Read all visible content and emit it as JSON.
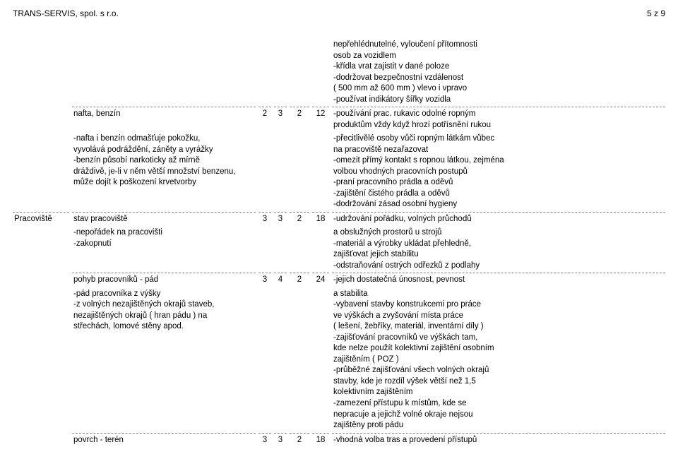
{
  "header": {
    "company": "TRANS-SERVIS, spol. s r.o.",
    "page": "5 z 9"
  },
  "rows": [
    {
      "c0": "",
      "c1": "",
      "n1": "",
      "n2": "",
      "n3": "",
      "n4": "",
      "c2": "nepřehlédnutelné, vyloučení přítomnosti\nosob za vozidlem\n-křídla vrat zajistit v dané poloze\n-dodržovat bezpečnostní vzdálenost\n( 500 mm až 600 mm ) vlevo i vpravo\n-používat indikátory šířky vozidla"
    },
    {
      "c0": "",
      "c1": "nafta, benzín",
      "n1": "2",
      "n2": "3",
      "n3": "2",
      "n4": "12",
      "c2": "-používání prac. rukavic odolné ropným\nproduktům vždy když hrozí potřísnění rukou"
    },
    {
      "c0": "",
      "c1": "-nafta i benzín odmašťuje pokožku,\nvyvolává podráždění, záněty a vyrážky\n-benzín působí narkoticky až mírně\ndráždivě, je-li v něm větší množství benzenu,\nmůže dojít k poškození krvetvorby",
      "n1": "",
      "n2": "",
      "n3": "",
      "n4": "",
      "c2": "-přecitlivělé osoby vůči ropným látkám vůbec\nna pracoviště nezařazovat\n-omezit přímý kontakt s ropnou látkou, zejména\nvolbou vhodných pracovních postupů\n-praní pracovního prádla a oděvů\n-zajištění čistého prádla a oděvů\n-dodržování zásad osobní hygieny"
    },
    {
      "c0": "Pracoviště",
      "c1": "stav pracoviště",
      "n1": "3",
      "n2": "3",
      "n3": "2",
      "n4": "18",
      "c2": "-udržování pořádku, volných průchodů"
    },
    {
      "c0": "",
      "c1": "-nepořádek na pracovišti\n-zakopnutí",
      "n1": "",
      "n2": "",
      "n3": "",
      "n4": "",
      "c2": "a obslužných prostorů u strojů\n-materiál a výrobky ukládat přehledně,\nzajišťovat jejich stabilitu\n-odstraňování ostrých odřezků z podlahy"
    },
    {
      "c0": "",
      "c1": "pohyb pracovníků - pád",
      "n1": "3",
      "n2": "4",
      "n3": "2",
      "n4": "24",
      "c2": "-jejich dostatečná únosnost, pevnost"
    },
    {
      "c0": "",
      "c1": "-pád pracovníka z výšky\n-z volných nezajištěných okrajů staveb,\nnezajištěných okrajů ( hran pádu ) na\nstřechách, lomové stěny apod.",
      "n1": "",
      "n2": "",
      "n3": "",
      "n4": "",
      "c2": "a stabilita\n-vybavení stavby konstrukcemi pro práce\nve výškách a zvyšování místa práce\n( lešení, žebříky, materiál, inventární díly )\n-zajišťování pracovníků ve výškách tam,\nkde nelze použít kolektivní zajištění osobním\nzajištěním ( POZ )\n-průběžné zajišťování všech volných okrajů\nstavby, kde je rozdíl výšek větší než 1,5\nkolektivním zajištěním\n-zamezení přístupu k místům, kde se\nnepracuje a jejichž volné okraje nejsou\nzajištěny proti pádu"
    },
    {
      "c0": "",
      "c1": "povrch - terén",
      "n1": "3",
      "n2": "3",
      "n3": "2",
      "n4": "18",
      "c2": "-vhodná volba tras a provedení přístupů"
    }
  ]
}
